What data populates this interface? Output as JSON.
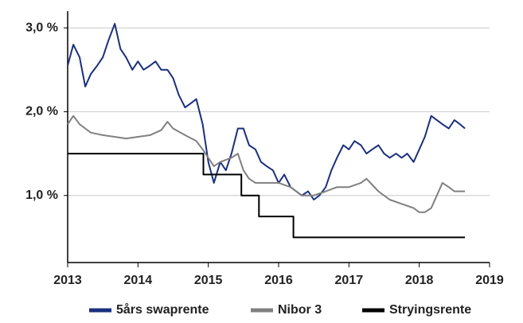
{
  "chart_data": {
    "type": "line",
    "xlim": [
      2013,
      2019
    ],
    "xticks": [
      2013,
      2014,
      2015,
      2016,
      2017,
      2018,
      2019
    ],
    "ylim": [
      0.2,
      3.2
    ],
    "yticks": [
      {
        "value": 1,
        "label": "1,0 %"
      },
      {
        "value": 2,
        "label": "2,0 %"
      },
      {
        "value": 3,
        "label": "3,0 %"
      }
    ],
    "grid": true,
    "legend": "bottom",
    "series": [
      {
        "name": "5års swaprente",
        "color": "#1b2f7e",
        "x": [
          2013.0,
          2013.08,
          2013.17,
          2013.25,
          2013.33,
          2013.42,
          2013.5,
          2013.58,
          2013.67,
          2013.75,
          2013.83,
          2013.92,
          2014.0,
          2014.08,
          2014.17,
          2014.25,
          2014.33,
          2014.42,
          2014.5,
          2014.58,
          2014.67,
          2014.75,
          2014.83,
          2014.92,
          2015.0,
          2015.08,
          2015.17,
          2015.25,
          2015.33,
          2015.42,
          2015.5,
          2015.58,
          2015.67,
          2015.75,
          2015.83,
          2015.92,
          2016.0,
          2016.08,
          2016.17,
          2016.25,
          2016.33,
          2016.42,
          2016.5,
          2016.58,
          2016.67,
          2016.75,
          2016.83,
          2016.92,
          2017.0,
          2017.08,
          2017.17,
          2017.25,
          2017.33,
          2017.42,
          2017.5,
          2017.58,
          2017.67,
          2017.75,
          2017.83,
          2017.92,
          2018.0,
          2018.08,
          2018.17,
          2018.25,
          2018.33,
          2018.42,
          2018.5,
          2018.58,
          2018.65
        ],
        "values": [
          2.55,
          2.8,
          2.65,
          2.3,
          2.45,
          2.55,
          2.65,
          2.85,
          3.05,
          2.75,
          2.65,
          2.5,
          2.6,
          2.5,
          2.55,
          2.6,
          2.5,
          2.5,
          2.4,
          2.2,
          2.05,
          2.1,
          2.15,
          1.85,
          1.4,
          1.15,
          1.4,
          1.3,
          1.5,
          1.8,
          1.8,
          1.6,
          1.55,
          1.4,
          1.35,
          1.3,
          1.15,
          1.25,
          1.1,
          1.05,
          1.0,
          1.05,
          0.95,
          1.0,
          1.1,
          1.3,
          1.45,
          1.6,
          1.55,
          1.65,
          1.6,
          1.5,
          1.55,
          1.6,
          1.5,
          1.45,
          1.5,
          1.45,
          1.5,
          1.4,
          1.55,
          1.7,
          1.95,
          1.9,
          1.85,
          1.8,
          1.9,
          1.85,
          1.8
        ]
      },
      {
        "name": "Nibor 3",
        "color": "#808080",
        "x": [
          2013.0,
          2013.08,
          2013.17,
          2013.25,
          2013.33,
          2013.5,
          2013.67,
          2013.83,
          2014.0,
          2014.17,
          2014.33,
          2014.42,
          2014.5,
          2014.67,
          2014.83,
          2014.92,
          2015.0,
          2015.08,
          2015.17,
          2015.33,
          2015.42,
          2015.5,
          2015.58,
          2015.67,
          2015.83,
          2016.0,
          2016.17,
          2016.33,
          2016.5,
          2016.67,
          2016.83,
          2017.0,
          2017.17,
          2017.25,
          2017.42,
          2017.58,
          2017.75,
          2017.92,
          2018.0,
          2018.08,
          2018.17,
          2018.25,
          2018.33,
          2018.42,
          2018.5,
          2018.58,
          2018.65
        ],
        "values": [
          1.85,
          1.95,
          1.85,
          1.8,
          1.75,
          1.72,
          1.7,
          1.68,
          1.7,
          1.72,
          1.78,
          1.88,
          1.8,
          1.72,
          1.65,
          1.55,
          1.45,
          1.35,
          1.4,
          1.45,
          1.5,
          1.3,
          1.2,
          1.15,
          1.15,
          1.15,
          1.1,
          1.0,
          1.0,
          1.05,
          1.1,
          1.1,
          1.15,
          1.2,
          1.05,
          0.95,
          0.9,
          0.85,
          0.8,
          0.8,
          0.85,
          1.0,
          1.15,
          1.1,
          1.05,
          1.05,
          1.05
        ]
      },
      {
        "name": "Stryingsrente",
        "color": "#000000",
        "x": [
          2013.0,
          2014.93,
          2014.93,
          2015.47,
          2015.47,
          2015.72,
          2015.72,
          2016.21,
          2016.21,
          2018.65
        ],
        "values": [
          1.5,
          1.5,
          1.25,
          1.25,
          1.0,
          1.0,
          0.75,
          0.75,
          0.5,
          0.5
        ]
      }
    ]
  }
}
